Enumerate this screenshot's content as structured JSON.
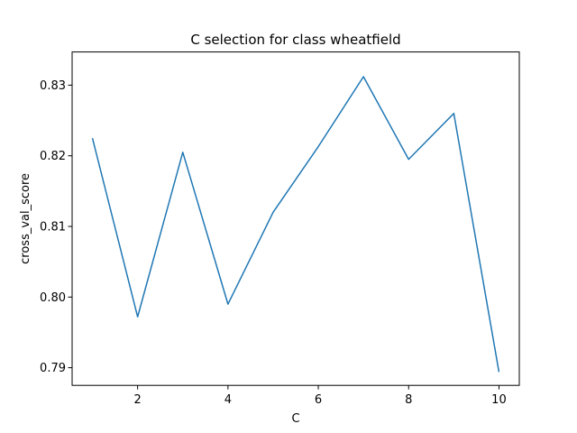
{
  "chart_data": {
    "type": "line",
    "title": "C selection for class wheatfield",
    "xlabel": "C",
    "ylabel": "cross_val_score",
    "xlim": [
      0.55,
      10.45
    ],
    "ylim": [
      0.7875,
      0.8347
    ],
    "xticks": [
      2,
      4,
      6,
      8,
      10
    ],
    "yticks": [
      0.79,
      0.8,
      0.81,
      0.82,
      0.83
    ],
    "xtick_labels": [
      "2",
      "4",
      "6",
      "8",
      "10"
    ],
    "ytick_labels": [
      "0.79",
      "0.80",
      "0.81",
      "0.82",
      "0.83"
    ],
    "grid": false,
    "legend": "none",
    "colors": {
      "line": "#1f77b4",
      "axes": "#000000",
      "background": "#ffffff"
    },
    "series": [
      {
        "x": [
          1,
          2,
          3,
          4,
          5,
          6,
          7,
          8,
          9,
          10
        ],
        "values": [
          0.8225,
          0.7972,
          0.8205,
          0.799,
          0.812,
          0.8213,
          0.8312,
          0.8195,
          0.826,
          0.7894
        ]
      }
    ]
  }
}
